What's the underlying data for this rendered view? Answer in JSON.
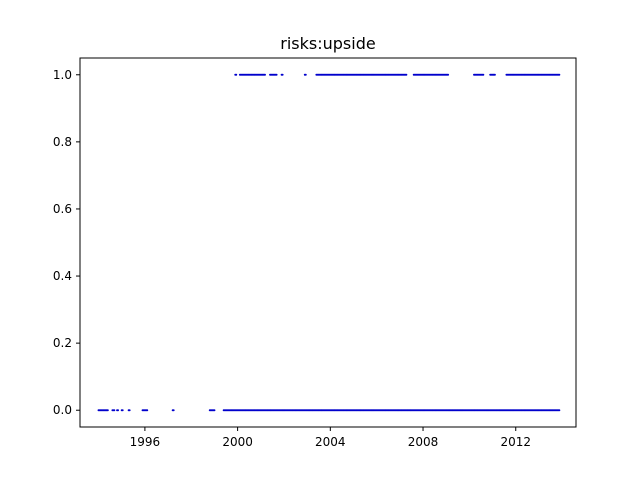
{
  "chart_data": {
    "type": "scatter",
    "title": "risks:upside",
    "xlabel": "",
    "ylabel": "",
    "xlim": [
      1993.2,
      2014.6
    ],
    "ylim": [
      -0.05,
      1.05
    ],
    "x_ticks": [
      1996,
      2000,
      2004,
      2008,
      2012
    ],
    "x_tick_labels": [
      "1996",
      "2000",
      "2004",
      "2008",
      "2012"
    ],
    "y_ticks": [
      0.0,
      0.2,
      0.4,
      0.6,
      0.8,
      1.0
    ],
    "y_tick_labels": [
      "0.0",
      "0.2",
      "0.4",
      "0.6",
      "0.8",
      "1.0"
    ],
    "grid": false,
    "marker_color": "#0000cc",
    "series": [
      {
        "values_at_0_ranges": [
          [
            1994.0,
            1994.4
          ],
          [
            1994.6,
            1994.7
          ],
          [
            1994.8,
            1994.85
          ],
          [
            1995.0,
            1995.05
          ],
          [
            1995.3,
            1995.35
          ],
          [
            1995.9,
            1996.1
          ],
          [
            1997.2,
            1997.25
          ],
          [
            1998.8,
            1999.0
          ],
          [
            1999.4,
            2013.9
          ]
        ],
        "values_at_1_ranges": [
          [
            1999.9,
            1999.95
          ],
          [
            2000.1,
            2001.2
          ],
          [
            2001.4,
            2001.7
          ],
          [
            2001.9,
            2001.95
          ],
          [
            2002.9,
            2002.95
          ],
          [
            2003.4,
            2007.3
          ],
          [
            2007.6,
            2009.1
          ],
          [
            2010.2,
            2010.6
          ],
          [
            2010.9,
            2011.1
          ],
          [
            2011.6,
            2013.9
          ]
        ]
      }
    ]
  }
}
